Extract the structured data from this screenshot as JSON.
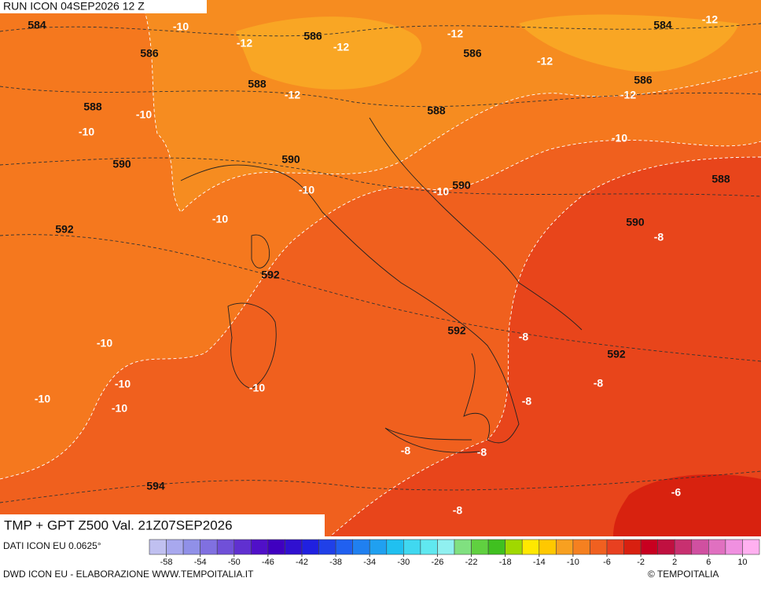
{
  "header": {
    "run": "RUN ICON 04SEP2026 12 Z",
    "title": "TMP + GPT Z500 Val. 21Z07SEP2026"
  },
  "footer": {
    "source": "DATI ICON EU 0.0625°",
    "credit": "DWD ICON EU - ELABORAZIONE WWW.TEMPOITALIA.IT",
    "copyright": "© TEMPOITALIA"
  },
  "contour_labels": {
    "geopotential": [
      584,
      586,
      586,
      586,
      584,
      588,
      588,
      588,
      586,
      590,
      590,
      590,
      588,
      592,
      590,
      592,
      592,
      592,
      594
    ],
    "temperature": [
      -10,
      -12,
      -12,
      -12,
      -12,
      -12,
      -12,
      -12,
      -10,
      -10,
      -10,
      -10,
      -10,
      -10,
      -8,
      -10,
      -8,
      -10,
      -10,
      -8,
      -10,
      -10,
      -8,
      -8,
      -8,
      -8,
      -6
    ]
  },
  "colorbar": {
    "lim": [
      -60,
      12
    ],
    "ticks": [
      -58,
      -54,
      -50,
      -46,
      -42,
      -38,
      -34,
      -30,
      -26,
      -22,
      -18,
      -14,
      -10,
      -6,
      -2,
      2,
      6,
      10
    ],
    "colors": [
      "#c0c0f0",
      "#a8a8ee",
      "#9090e8",
      "#8070e0",
      "#7050d8",
      "#6030d0",
      "#5010c8",
      "#4000c0",
      "#3010d0",
      "#2020e0",
      "#2040e8",
      "#2060f0",
      "#2080f0",
      "#20a0f0",
      "#20c0f0",
      "#40d8f0",
      "#60e8f0",
      "#90f0f0",
      "#80e080",
      "#60d040",
      "#40c020",
      "#a0d800",
      "#ffe800",
      "#ffc800",
      "#f8a020",
      "#f58020",
      "#f06020",
      "#e84020",
      "#d82010",
      "#c80020",
      "#c01040",
      "#c83070",
      "#d050a0",
      "#e070c0",
      "#f090e0",
      "#ffb0f0"
    ]
  }
}
